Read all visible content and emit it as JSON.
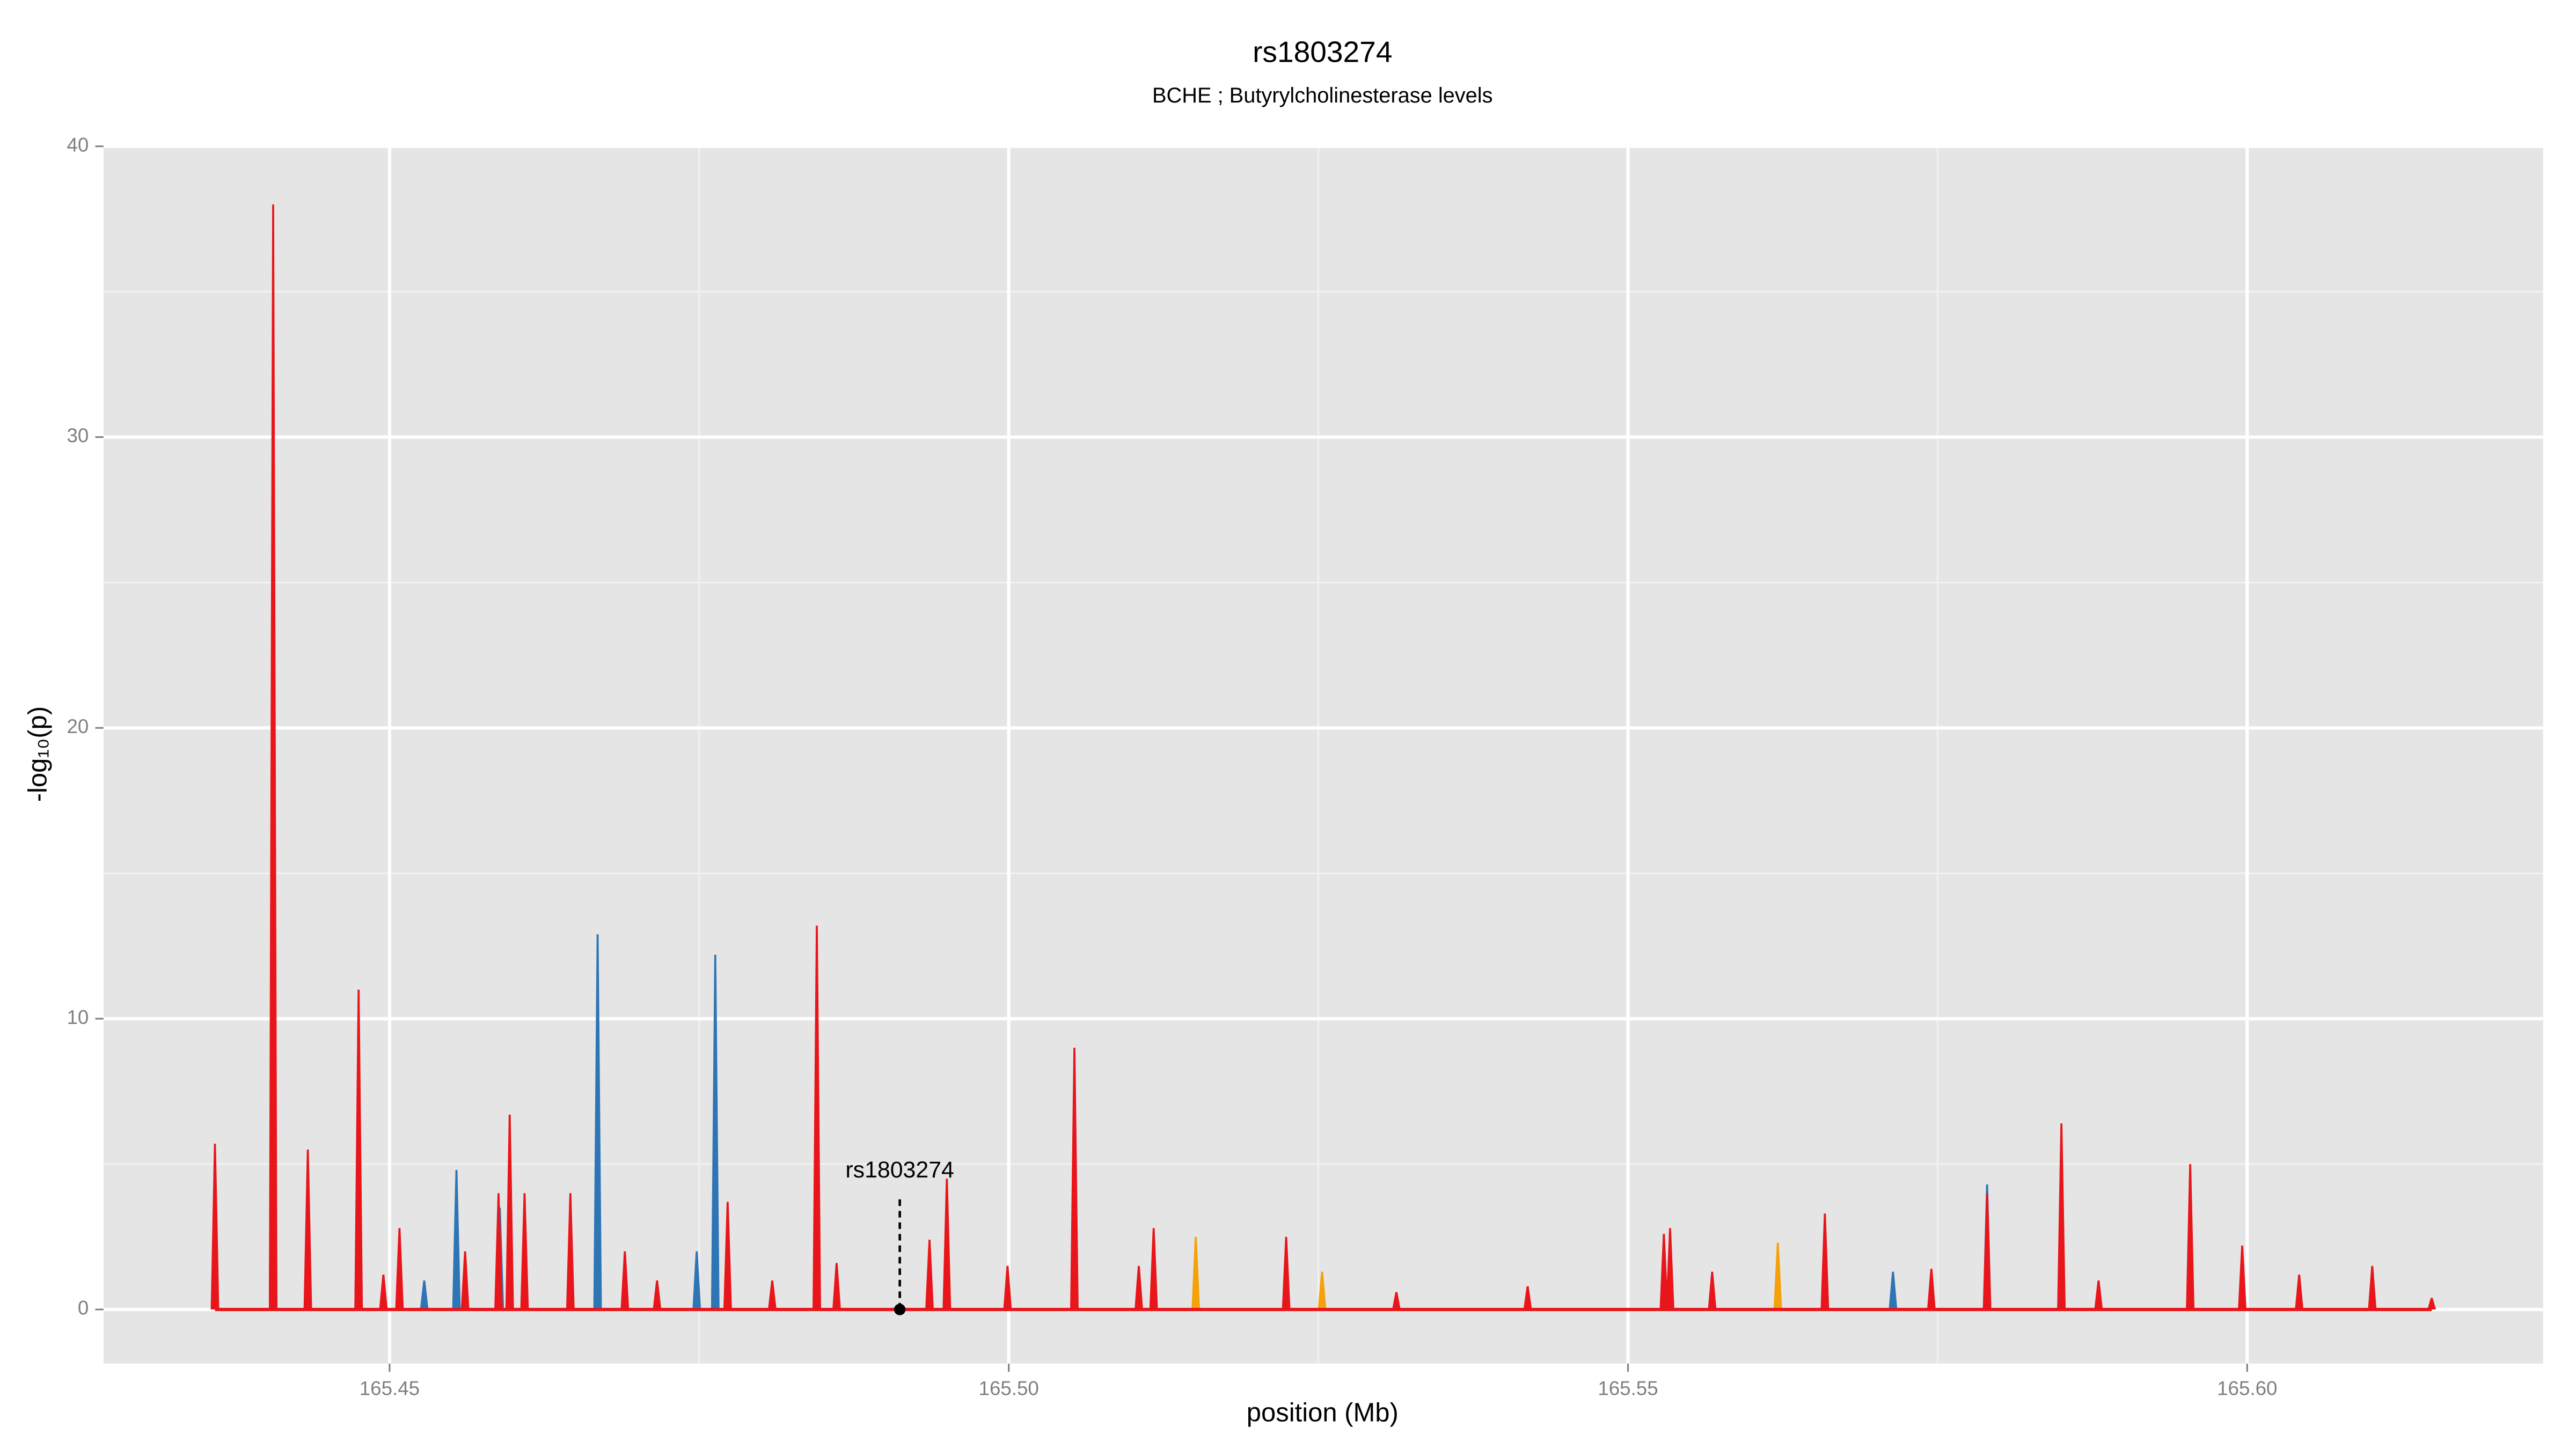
{
  "chart_data": {
    "type": "area",
    "title": "rs1803274",
    "subtitle": "BCHE ; Butyrylcholinesterase levels",
    "xlabel": "position (Mb)",
    "ylabel": "-log₁₀(p)",
    "xlim": [
      165.4269,
      165.6239
    ],
    "ylim": [
      -1.86,
      40.06
    ],
    "xticks": [
      165.45,
      {
        "value": 165.5,
        "label": "165.50"
      },
      165.55,
      {
        "value": 165.6,
        "label": "165.60"
      }
    ],
    "yticks": [
      0,
      10,
      20,
      30,
      40
    ],
    "minor_xticks": [
      165.425,
      165.475,
      165.525,
      165.575,
      165.625
    ],
    "minor_yticks": [
      5,
      15,
      25,
      35
    ],
    "grid": true,
    "background": "#e5e5e5",
    "annotation": {
      "text": "rs1803274",
      "x": 165.4912,
      "y": 0
    },
    "series": [
      {
        "color": "#2e75b6",
        "x": [
          165.4406,
          165.4475,
          165.4528,
          165.4554,
          165.4589,
          165.4668,
          165.4748,
          165.4763,
          165.495,
          165.5714,
          165.579,
          165.585,
          165.5954
        ],
        "values": [
          23,
          9,
          1,
          4.8,
          3.5,
          12.9,
          2,
          12.2,
          4.2,
          1.3,
          4.3,
          4,
          3
        ]
      },
      {
        "color": "#f5a20a",
        "x": [
          165.5151,
          165.5253,
          165.5621
        ],
        "values": [
          2.5,
          1.3,
          2.3
        ]
      },
      {
        "color": "#e8161b",
        "x": [
          165.4359,
          165.4406,
          165.4434,
          165.4475,
          165.4495,
          165.4508,
          165.4561,
          165.4588,
          165.4597,
          165.4609,
          165.4646,
          165.469,
          165.4716,
          165.4773,
          165.4809,
          165.4845,
          165.4861,
          165.4936,
          165.495,
          165.4999,
          165.5053,
          165.5105,
          165.5117,
          165.5224,
          165.5313,
          165.5419,
          165.5529,
          165.5534,
          165.5568,
          165.5659,
          165.5745,
          165.579,
          165.585,
          165.588,
          165.5954,
          165.5996,
          165.6042,
          165.6101,
          165.6149
        ],
        "values": [
          5.7,
          38,
          5.5,
          11,
          1.2,
          2.8,
          2,
          4,
          6.7,
          4,
          4,
          2,
          1,
          3.7,
          1,
          13.2,
          1.6,
          2.4,
          4.5,
          1.5,
          9,
          1.5,
          2.8,
          2.5,
          0.6,
          0.8,
          2.6,
          2.8,
          1.3,
          3.3,
          1.4,
          4,
          6.4,
          1,
          5,
          2.2,
          1.2,
          1.5,
          0.4
        ]
      }
    ]
  }
}
